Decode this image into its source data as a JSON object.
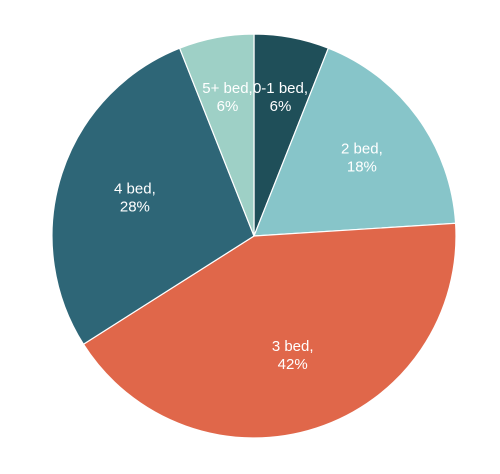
{
  "chart_data": {
    "type": "pie",
    "start_angle_deg": 0,
    "direction": "clockwise",
    "title": "",
    "slices": [
      {
        "label": "0-1 bed",
        "value": 6,
        "display": [
          "0-1 bed,",
          "6%"
        ],
        "color": "#1f4f59"
      },
      {
        "label": "2 bed",
        "value": 18,
        "display": [
          "2 bed,",
          "18%"
        ],
        "color": "#87c5c9"
      },
      {
        "label": "3 bed",
        "value": 42,
        "display": [
          "3 bed,",
          "42%"
        ],
        "color": "#e0674a"
      },
      {
        "label": "4 bed",
        "value": 28,
        "display": [
          "4 bed,",
          "28%"
        ],
        "color": "#2e6677"
      },
      {
        "label": "5+ bed",
        "value": 6,
        "display": [
          "5+ bed,",
          "6%"
        ],
        "color": "#9ed0c6"
      }
    ]
  }
}
